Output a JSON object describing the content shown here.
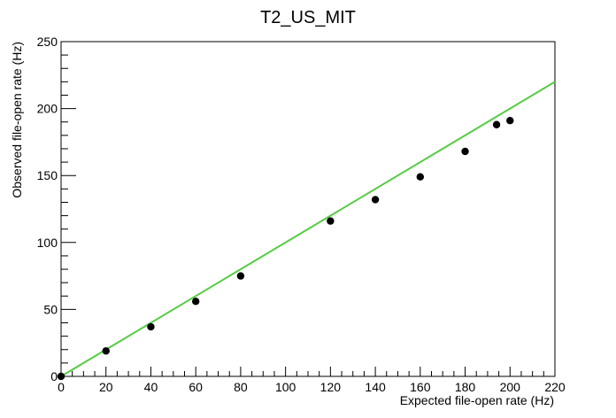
{
  "chart_data": {
    "type": "scatter",
    "title": "T2_US_MIT",
    "xlabel": "Expected file-open rate (Hz)",
    "ylabel": "Observed file-open rate (Hz)",
    "xlim": [
      0,
      220
    ],
    "ylim": [
      0,
      250
    ],
    "x_ticks": [
      0,
      20,
      40,
      60,
      80,
      100,
      120,
      140,
      160,
      180,
      200,
      220
    ],
    "y_ticks": [
      0,
      50,
      100,
      150,
      200,
      250
    ],
    "grid": false,
    "legend": "none",
    "series": [
      {
        "marker": "filled-circle",
        "color": "#000000",
        "points": [
          {
            "x": 0,
            "y": 0
          },
          {
            "x": 20,
            "y": 19
          },
          {
            "x": 40,
            "y": 37
          },
          {
            "x": 60,
            "y": 56
          },
          {
            "x": 80,
            "y": 75
          },
          {
            "x": 120,
            "y": 116
          },
          {
            "x": 140,
            "y": 132
          },
          {
            "x": 160,
            "y": 149
          },
          {
            "x": 180,
            "y": 168
          },
          {
            "x": 194,
            "y": 188
          },
          {
            "x": 200,
            "y": 191
          }
        ]
      }
    ],
    "reference_line": {
      "color": "#55cc44",
      "from": {
        "x": 0,
        "y": 0
      },
      "to": {
        "x": 220,
        "y": 220
      }
    }
  }
}
